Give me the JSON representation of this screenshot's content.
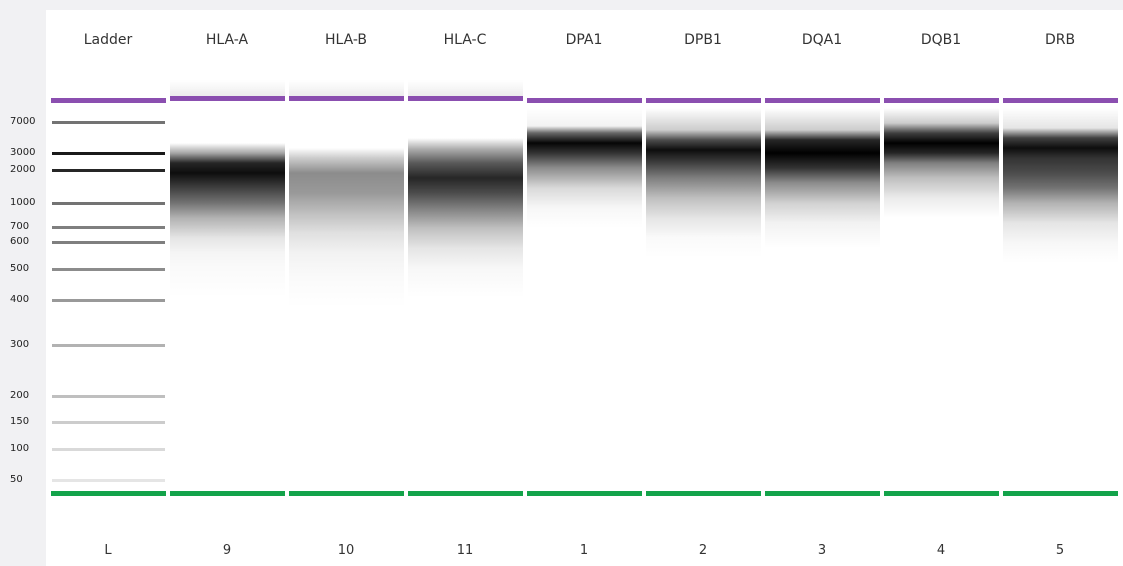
{
  "lanes": [
    {
      "label": "Ladder",
      "number": "L"
    },
    {
      "label": "HLA-A",
      "number": "9"
    },
    {
      "label": "HLA-B",
      "number": "10"
    },
    {
      "label": "HLA-C",
      "number": "11"
    },
    {
      "label": "DPA1",
      "number": "1"
    },
    {
      "label": "DPB1",
      "number": "2"
    },
    {
      "label": "DQA1",
      "number": "3"
    },
    {
      "label": "DQB1",
      "number": "4"
    },
    {
      "label": "DRB",
      "number": "5"
    }
  ],
  "ladder_sizes": [
    "7000",
    "3000",
    "2000",
    "1000",
    "700",
    "600",
    "500",
    "400",
    "300",
    "200",
    "150",
    "100",
    "50"
  ],
  "colors": {
    "upper_marker": "#8b4fb0",
    "lower_marker": "#13a34a",
    "band": "#000000",
    "background": "#ffffff"
  }
}
